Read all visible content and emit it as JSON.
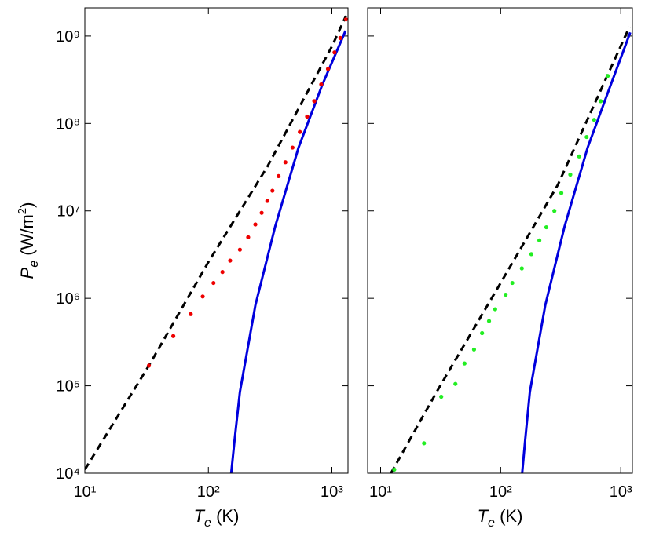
{
  "chart_data": [
    {
      "type": "line",
      "xscale": "log",
      "yscale": "log",
      "xlabel": [
        "T",
        "e",
        " (K)"
      ],
      "ylabel": [
        "P",
        "e",
        " (W/m",
        "2",
        ")"
      ],
      "xlim": [
        10,
        1350
      ],
      "ylim": [
        10000,
        2100000000
      ],
      "xticks": [
        {
          "value": 10,
          "label": "10¹"
        },
        {
          "value": 100,
          "label": "10²"
        },
        {
          "value": 1000,
          "label": "10³"
        }
      ],
      "yticks": [
        {
          "value": 10000,
          "label": "10⁴"
        },
        {
          "value": 100000,
          "label": "10⁵"
        },
        {
          "value": 1000000,
          "label": "10⁶"
        },
        {
          "value": 10000000,
          "label": "10⁷"
        },
        {
          "value": 100000000,
          "label": "10⁸"
        },
        {
          "value": 1000000000,
          "label": "10⁹"
        }
      ],
      "ytick_labels": true,
      "series": [
        {
          "style": "dashed",
          "color": "#000000",
          "x": [
            10,
            33,
            100,
            300,
            1000,
            1300
          ],
          "values": [
            11000,
            170000,
            2600000,
            32000000,
            760000000,
            1700000000
          ]
        },
        {
          "style": "solid",
          "color": "#0000dd",
          "x": [
            153,
            163,
            180,
            240,
            347,
            537,
            830,
            1290
          ],
          "values": [
            10000,
            24000,
            85000,
            830000,
            6600000,
            53000000,
            270000000,
            1150000000
          ]
        },
        {
          "style": "dots",
          "color": "#ee0000",
          "x": [
            33,
            52,
            72,
            90,
            110,
            130,
            150,
            180,
            210,
            240,
            270,
            300,
            330,
            370,
            420,
            480,
            550,
            630,
            720,
            820,
            930,
            1050,
            1170,
            1300
          ],
          "values": [
            170000,
            370000,
            660000,
            1050000,
            1500000,
            2000000,
            2700000,
            3600000,
            5000000,
            7000000,
            9500000,
            13000000,
            17000000,
            25000000,
            36000000,
            53000000,
            80000000,
            120000000,
            180000000,
            280000000,
            420000000,
            650000000,
            950000000,
            1550000000
          ]
        }
      ]
    },
    {
      "type": "line",
      "xscale": "log",
      "yscale": "log",
      "xlabel": [
        "T",
        "e",
        " (K)"
      ],
      "xlim": [
        7.8,
        1250
      ],
      "ylim": [
        10000,
        2100000000
      ],
      "xticks": [
        {
          "value": 10,
          "label": "10¹"
        },
        {
          "value": 100,
          "label": "10²"
        },
        {
          "value": 1000,
          "label": "10³"
        }
      ],
      "yticks": [
        10000,
        100000,
        1000000,
        10000000,
        100000000,
        1000000000
      ],
      "ytick_labels": false,
      "series": [
        {
          "style": "dashed",
          "color": "#000000",
          "x": [
            12.2,
            30,
            100,
            300,
            1180
          ],
          "values": [
            10000,
            90000,
            1500000,
            20000000,
            1270000000
          ]
        },
        {
          "style": "solid",
          "color": "#0000dd",
          "x": [
            151,
            160,
            175,
            235,
            340,
            530,
            820,
            1200
          ],
          "values": [
            10000,
            24000,
            85000,
            830000,
            6600000,
            53000000,
            270000000,
            1100000000
          ]
        },
        {
          "style": "dots",
          "color": "#22ee22",
          "x": [
            13,
            23,
            32,
            42,
            50,
            60,
            70,
            80,
            90,
            110,
            125,
            150,
            180,
            210,
            240,
            280,
            320,
            380,
            450,
            520,
            600,
            680,
            780
          ],
          "values": [
            11000,
            22000,
            75000,
            105000,
            180000,
            260000,
            400000,
            550000,
            750000,
            1100000,
            1500000,
            2200000,
            3200000,
            4600000,
            6500000,
            10000000,
            16000000,
            26000000,
            42000000,
            70000000,
            110000000,
            180000000,
            350000000
          ]
        }
      ]
    }
  ]
}
